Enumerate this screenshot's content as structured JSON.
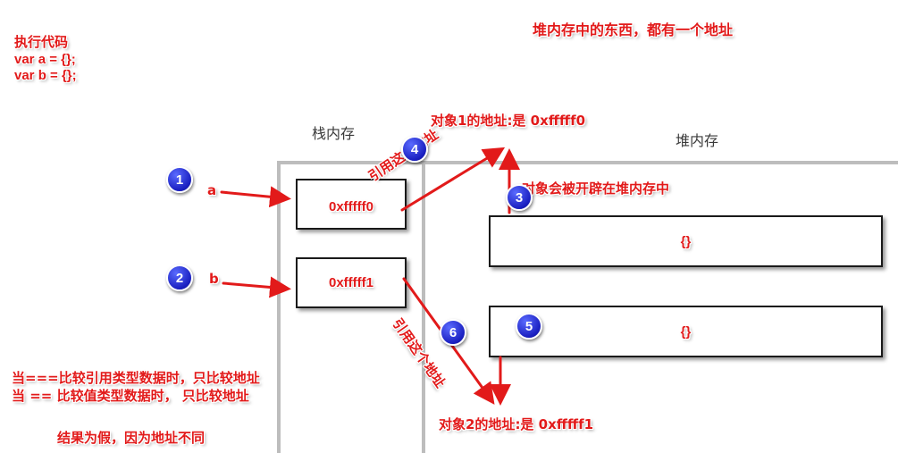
{
  "code": {
    "title": "执行代码",
    "line1": "var a = {};",
    "line2": "var b = {};"
  },
  "heap_note": "堆内存中的东西，都有一个地址",
  "regions": {
    "stack": "栈内存",
    "heap": "堆内存"
  },
  "labels": {
    "obj1_address": "对象1的地址:是 0xfffff0",
    "obj2_address": "对象2的地址:是 0xfffff1",
    "heap_alloc": "对象会被开辟在堆内存中",
    "ref_a": "引用这个地址",
    "ref_b": "引用这个地址"
  },
  "variables": {
    "a": "a",
    "b": "b"
  },
  "stack_cells": {
    "cell_a": "0xfffff0",
    "cell_b": "0xfffff1"
  },
  "heap_objects": {
    "obj1": "{}",
    "obj2": "{}"
  },
  "steps": {
    "s1": "1",
    "s2": "2",
    "s3": "3",
    "s4": "4",
    "s5": "5",
    "s6": "6"
  },
  "comparison": {
    "strict": "当===比较引用类型数据时，只比较地址",
    "loose": "当 == 比较值类型数据时， 只比较地址",
    "result": "结果为假，因为地址不同"
  },
  "colors": {
    "accent": "#e21a1a",
    "badge": "#1a1fc0",
    "region_border": "#bdbdbd"
  }
}
